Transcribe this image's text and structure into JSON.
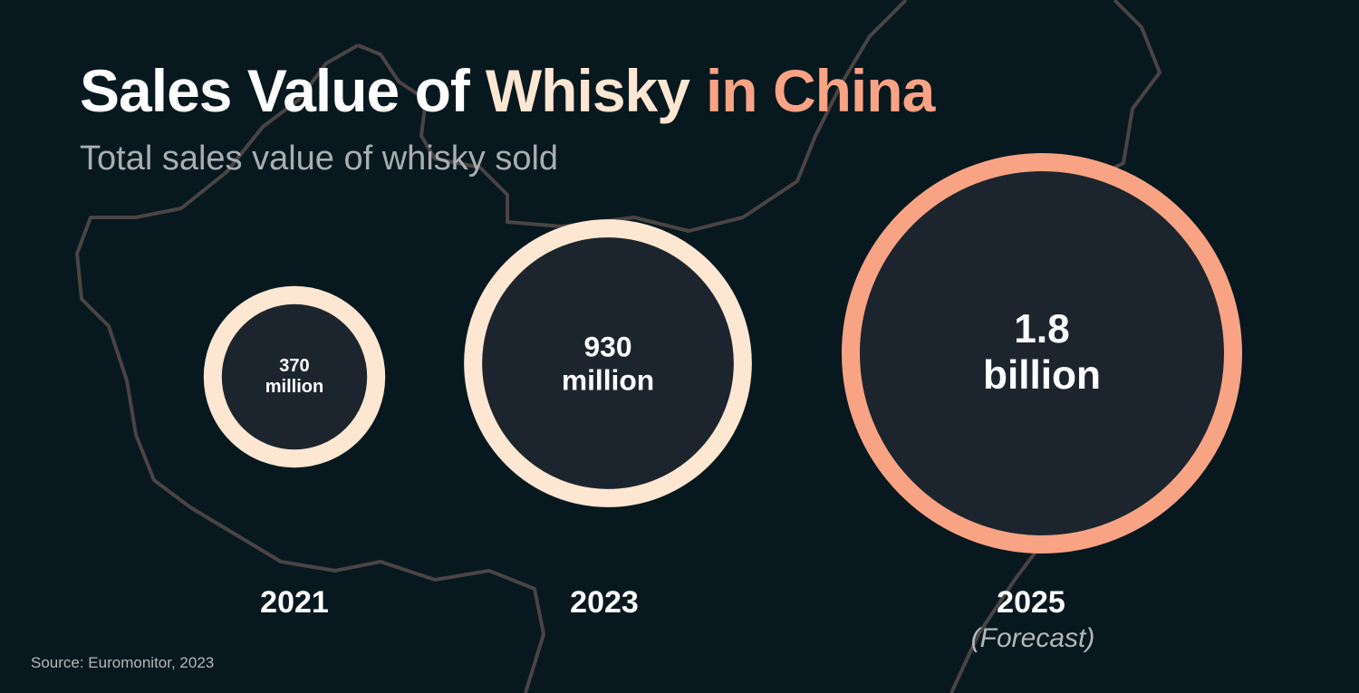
{
  "chart_data": {
    "type": "bubble",
    "title": [
      "Sales Value of",
      "Whisky",
      "in China"
    ],
    "title_colors": [
      "#ffffff",
      "#fde6d2",
      "#f9a385"
    ],
    "subtitle": "Total sales value of whisky sold",
    "categories": [
      "2021",
      "2023",
      "2025"
    ],
    "values": [
      370000000,
      930000000,
      1800000000
    ],
    "value_labels": [
      "370 million",
      "930 million",
      "1.8 billion"
    ],
    "colors": [
      "#fde6d2",
      "#fde6d2",
      "#f9a385"
    ],
    "annotation": "(Forecast)",
    "source": "Source: Euromonitor, 2023"
  }
}
